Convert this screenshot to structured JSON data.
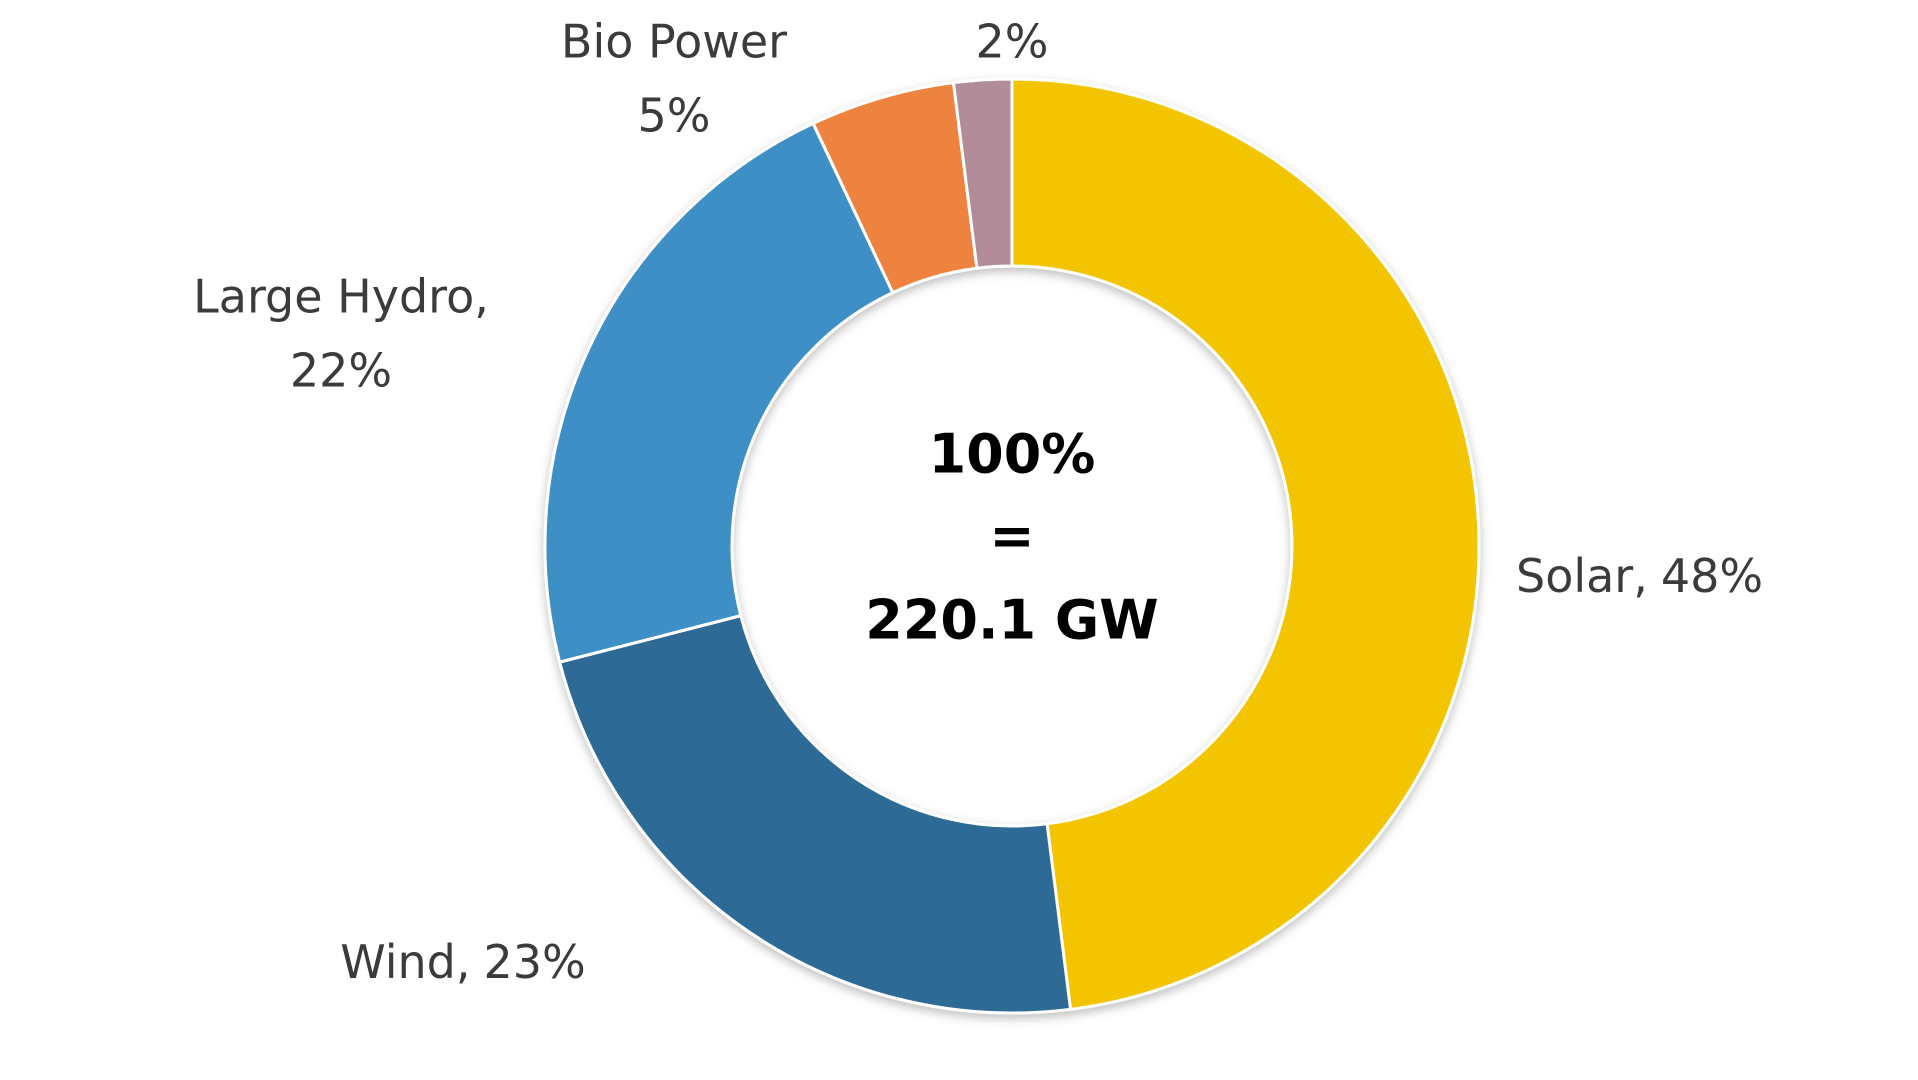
{
  "chart_data": {
    "type": "donut",
    "categories": [
      "Solar,",
      "Wind,",
      "Large Hydro,",
      "Bio Power",
      null
    ],
    "values": [
      48,
      23,
      22,
      5,
      2
    ],
    "value_labels": [
      "48%",
      "23%",
      "22%",
      "5%",
      "2%"
    ],
    "colors": [
      "#f2c500",
      "#2e6a96",
      "#3d8fc6",
      "#ee8340",
      "#b38c99"
    ],
    "center_text": [
      "100%",
      "=",
      "220.1 GW"
    ]
  }
}
